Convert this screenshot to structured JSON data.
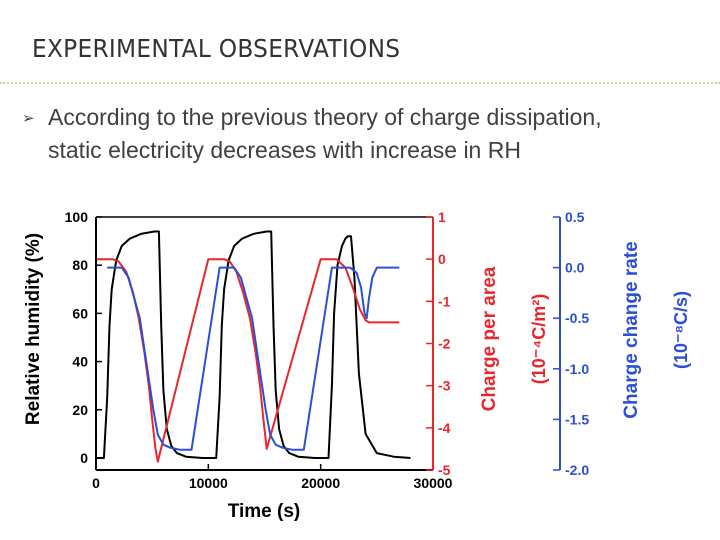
{
  "slide": {
    "title": "EXPERIMENTAL OBSERVATIONS",
    "bullet_icon": "arrow-bullet-icon",
    "bullet_text": "According to the previous theory of charge dissipation, static electricity decreases with increase in RH"
  },
  "chart_data": {
    "type": "line",
    "xlabel": "Time (s)",
    "xlim": [
      0,
      30000
    ],
    "x_ticks": [
      "0",
      "10000",
      "20000",
      "30000"
    ],
    "axes": [
      {
        "side": "left",
        "label": "Relative humidity (%)",
        "color": "#000000",
        "lim": [
          -5,
          100
        ],
        "ticks": [
          "0",
          "20",
          "40",
          "60",
          "80",
          "100"
        ]
      },
      {
        "side": "right",
        "label": "Charge per area",
        "units": "(10⁻⁴C/m²)",
        "color": "#e8262e",
        "lim": [
          -5,
          1
        ],
        "ticks": [
          "-5",
          "-4",
          "-3",
          "-2",
          "-1",
          "0",
          "1"
        ]
      },
      {
        "side": "right",
        "label": "Charge change rate",
        "units": "(10⁻⁸C/s)",
        "color": "#2a4fd6",
        "lim": [
          -2,
          0.5
        ],
        "ticks": [
          "-2.0",
          "-1.5",
          "-1.0",
          "-0.5",
          "0.0",
          "0.5"
        ]
      }
    ],
    "series": [
      {
        "axis": 0,
        "color": "#000000",
        "x": [
          0,
          700,
          1000,
          1200,
          1400,
          1800,
          2300,
          3000,
          4000,
          5200,
          5600,
          5800,
          6000,
          6300,
          6700,
          7200,
          8000,
          9500,
          10000,
          10700,
          11000,
          11200,
          11400,
          11800,
          12300,
          13000,
          14000,
          15200,
          15600,
          15800,
          16000,
          16300,
          16700,
          17200,
          18000,
          19500,
          20000,
          20700,
          21000,
          21200,
          21500,
          21900,
          22200,
          22400,
          22700,
          23000,
          23400,
          24000,
          25000,
          26500,
          28000
        ],
        "y": [
          0,
          0,
          25,
          55,
          70,
          82,
          88,
          91,
          93,
          94,
          94,
          55,
          28,
          12,
          5,
          2,
          0.5,
          0,
          0,
          0,
          25,
          55,
          70,
          82,
          88,
          91,
          93,
          94,
          94,
          55,
          28,
          12,
          5,
          2,
          0.5,
          0,
          0,
          0,
          30,
          60,
          80,
          88,
          91,
          92,
          92,
          75,
          35,
          10,
          2,
          0.5,
          0
        ]
      },
      {
        "axis": 1,
        "color": "#e8262e",
        "x": [
          0,
          1500,
          2000,
          2700,
          3300,
          3800,
          4300,
          4700,
          5000,
          5300,
          5500,
          10000,
          11400,
          11900,
          12500,
          13100,
          13700,
          14200,
          14600,
          14900,
          15200,
          20000,
          21400,
          22200,
          22900,
          23500,
          24000,
          24300,
          25000,
          26000,
          27000
        ],
        "y": [
          0,
          0,
          -0.05,
          -0.3,
          -0.8,
          -1.4,
          -2.2,
          -3.0,
          -3.8,
          -4.5,
          -4.8,
          0,
          0,
          -0.05,
          -0.3,
          -0.8,
          -1.4,
          -2.2,
          -3.0,
          -3.8,
          -4.5,
          0,
          0,
          -0.2,
          -0.7,
          -1.2,
          -1.45,
          -1.5,
          -1.5,
          -1.5,
          -1.5
        ]
      },
      {
        "axis": 2,
        "color": "#2a4fd6",
        "x": [
          1000,
          2300,
          2900,
          3400,
          3900,
          4300,
          4700,
          5100,
          5500,
          6000,
          6600,
          7500,
          8500,
          11000,
          12300,
          12900,
          13400,
          13900,
          14300,
          14700,
          15100,
          15500,
          16000,
          16600,
          17500,
          18500,
          21000,
          22600,
          23200,
          23600,
          23900,
          24100,
          24300,
          24600,
          25000,
          26000,
          27000
        ],
        "y": [
          0,
          0,
          -0.1,
          -0.3,
          -0.5,
          -0.8,
          -1.1,
          -1.4,
          -1.65,
          -1.75,
          -1.78,
          -1.8,
          -1.8,
          0,
          0,
          -0.1,
          -0.3,
          -0.5,
          -0.8,
          -1.1,
          -1.4,
          -1.65,
          -1.75,
          -1.78,
          -1.8,
          -1.8,
          0,
          0,
          -0.05,
          -0.2,
          -0.45,
          -0.5,
          -0.3,
          -0.1,
          0,
          0,
          0
        ]
      }
    ]
  }
}
